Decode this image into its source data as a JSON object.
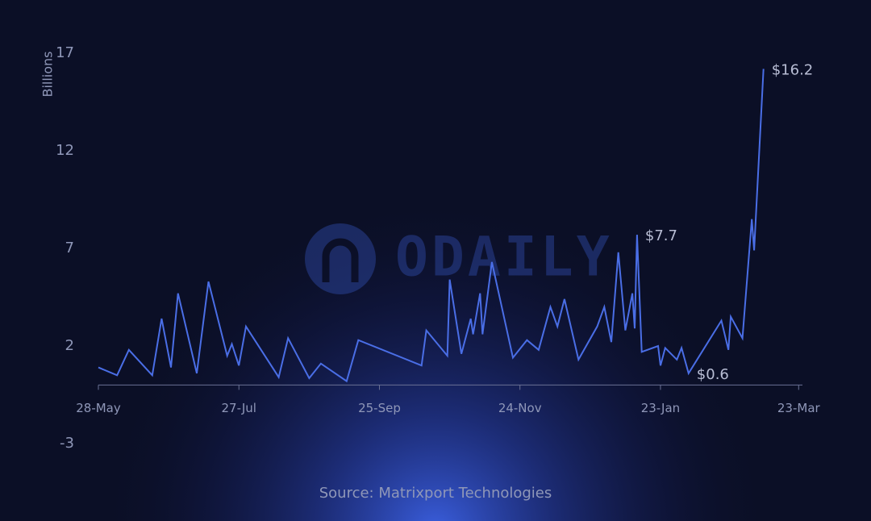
{
  "chart_data": {
    "type": "line",
    "y_label": "Billions",
    "source": "Source: Matrixport Technologies",
    "watermark": "ODAILY",
    "color": "#4a6ee6",
    "ylim": [
      -3,
      17
    ],
    "yticks": [
      -3,
      2,
      7,
      12,
      17
    ],
    "xlim": [
      "28-May",
      "26-Mar"
    ],
    "xticks": [
      "28-May",
      "27-Jul",
      "25-Sep",
      "24-Nov",
      "23-Jan",
      "23-Mar"
    ],
    "x": [
      "28-May",
      "5-Jun",
      "10-Jun",
      "20-Jun",
      "24-Jun",
      "28-Jun",
      "1-Jul",
      "9-Jul",
      "14-Jul",
      "22-Jul",
      "24-Jul",
      "27-Jul",
      "30-Jul",
      "13-Aug",
      "17-Aug",
      "26-Aug",
      "31-Aug",
      "11-Sep",
      "16-Sep",
      "13-Oct",
      "15-Oct",
      "24-Oct",
      "25-Oct",
      "30-Oct",
      "3-Nov",
      "4-Nov",
      "7-Nov",
      "8-Nov",
      "12-Nov",
      "21-Nov",
      "27-Nov",
      "2-Dec",
      "7-Dec",
      "10-Dec",
      "13-Dec",
      "19-Dec",
      "27-Dec",
      "30-Dec",
      "2-Jan",
      "5-Jan",
      "8-Jan",
      "11-Jan",
      "12-Jan",
      "13-Jan",
      "15-Jan",
      "22-Jan",
      "23-Jan",
      "25-Jan",
      "30-Jan",
      "1-Feb",
      "4-Feb",
      "18-Feb",
      "21-Feb",
      "22-Feb",
      "27-Feb",
      "3-Mar",
      "4-Mar",
      "8-Mar"
    ],
    "values": [
      0.9,
      0.5,
      1.8,
      0.5,
      3.4,
      0.9,
      4.7,
      0.6,
      5.3,
      1.5,
      2.1,
      1.0,
      3.0,
      0.4,
      2.4,
      0.35,
      1.1,
      0.2,
      2.3,
      1.0,
      2.8,
      1.5,
      5.4,
      1.6,
      3.4,
      2.6,
      4.7,
      2.6,
      6.3,
      1.4,
      2.3,
      1.8,
      4.0,
      3.0,
      4.4,
      1.3,
      3.0,
      4.0,
      2.2,
      6.8,
      2.8,
      4.7,
      2.9,
      7.7,
      1.7,
      2.0,
      1.0,
      1.9,
      1.3,
      1.9,
      0.6,
      3.3,
      1.8,
      3.5,
      2.4,
      8.5,
      6.9,
      16.2
    ],
    "value_labels": [
      null,
      null,
      null,
      null,
      null,
      null,
      null,
      null,
      null,
      null,
      null,
      null,
      null,
      null,
      null,
      null,
      null,
      null,
      null,
      null,
      null,
      null,
      null,
      null,
      null,
      null,
      null,
      null,
      null,
      null,
      null,
      null,
      null,
      null,
      null,
      null,
      null,
      null,
      null,
      null,
      null,
      null,
      null,
      "$7.7",
      null,
      null,
      null,
      null,
      null,
      null,
      "$0.6",
      null,
      null,
      null,
      null,
      null,
      null,
      "$16.2"
    ]
  }
}
